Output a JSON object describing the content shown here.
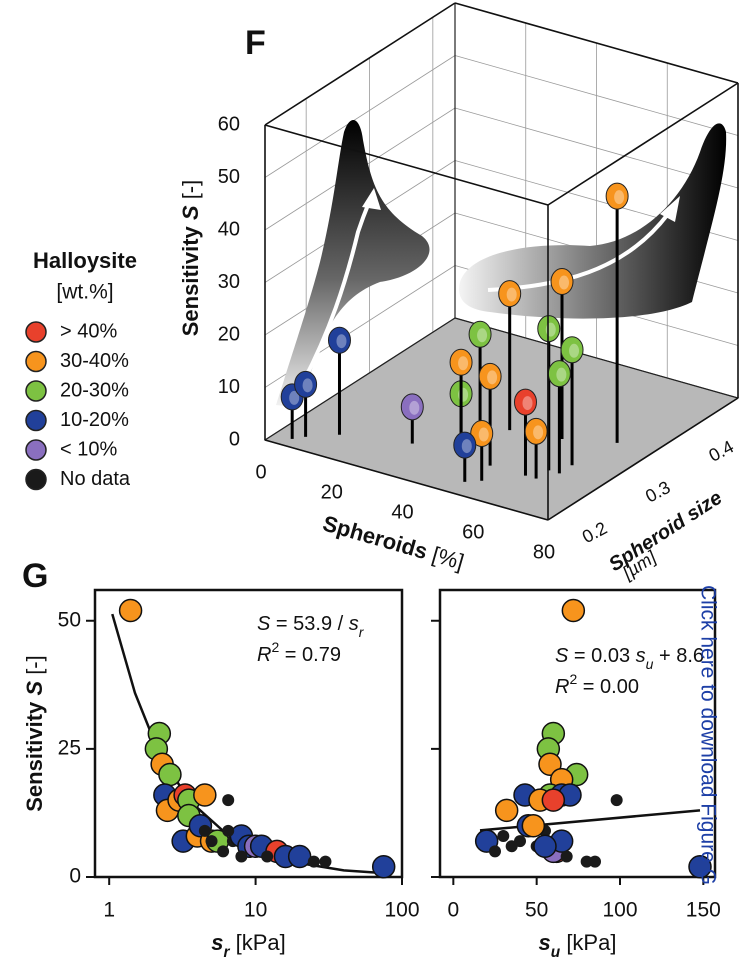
{
  "legend": {
    "title": "Halloysite",
    "subtitle": "[wt.%]",
    "items": [
      {
        "name": "> 40%",
        "color": "#e8412c"
      },
      {
        "name": "30-40%",
        "color": "#f7941d"
      },
      {
        "name": "20-30%",
        "color": "#7dc242"
      },
      {
        "name": "10-20%",
        "color": "#21409a"
      },
      {
        "name": "< 10%",
        "color": "#8a6fbf"
      },
      {
        "name": "No data",
        "color": "#1a1a1a"
      }
    ]
  },
  "link_text": "Click here to download Figure G",
  "chart_data": [
    {
      "type": "scatter3d",
      "panel": "F",
      "xlabel": [
        "Spheroids",
        " [%]"
      ],
      "ylabel": [
        "Spheroid size",
        "[µm]"
      ],
      "zlabel": [
        "Sensitivity ",
        "S",
        " [-]"
      ],
      "xlim": [
        0,
        80
      ],
      "xticks": [
        0,
        20,
        40,
        60,
        80
      ],
      "ylim": [
        0.135,
        0.435
      ],
      "yticks": [
        0.2,
        0.3,
        0.4
      ],
      "zlim": [
        0,
        60
      ],
      "zticks": [
        0,
        10,
        20,
        30,
        40,
        50,
        60
      ],
      "points": {
        "x": [
          5,
          7,
          13,
          30,
          42,
          42,
          42,
          45,
          52,
          55,
          52,
          62,
          58,
          65,
          68,
          68,
          65,
          70
        ],
        "y": [
          0.15,
          0.16,
          0.18,
          0.2,
          0.21,
          0.21,
          0.24,
          0.27,
          0.2,
          0.17,
          0.16,
          0.2,
          0.28,
          0.22,
          0.24,
          0.22,
          0.2,
          0.3
        ],
        "z": [
          8,
          10,
          18,
          7,
          11,
          17,
          20,
          26,
          17,
          9,
          7,
          14,
          30,
          27,
          22,
          19,
          9,
          47
        ],
        "group": [
          3,
          3,
          3,
          4,
          2,
          1,
          2,
          1,
          1,
          1,
          3,
          0,
          1,
          2,
          2,
          2,
          1,
          1
        ]
      }
    },
    {
      "type": "scatter",
      "panel": "G",
      "log_x": true,
      "xlabel": [
        "s",
        "r",
        " [kPa]"
      ],
      "ylabel": [
        "Sensitivity ",
        "S",
        " [-]"
      ],
      "xlim": [
        0.8,
        100
      ],
      "xticks": [
        1,
        10,
        100
      ],
      "ylim": [
        0,
        56
      ],
      "yticks": [
        0,
        25,
        50
      ],
      "annotation": [
        [
          "S",
          " = 53.9 / ",
          "s",
          "r"
        ],
        [
          "R",
          "2",
          " = 0.79"
        ]
      ],
      "fit_line": {
        "x": [
          1.05,
          1.5,
          2,
          3,
          4,
          6,
          10,
          20,
          40,
          80
        ],
        "y": [
          51.3,
          35.9,
          27,
          18,
          13.5,
          9,
          5.4,
          2.7,
          1.3,
          0.7
        ]
      },
      "points": {
        "x": [
          1.4,
          2.2,
          2.1,
          2.3,
          2.6,
          2.4,
          2.5,
          3.0,
          3.3,
          3.5,
          4.5,
          3.5,
          3.2,
          4.0,
          4.2,
          5,
          5.5,
          6.5,
          5,
          6,
          7,
          8,
          9,
          10,
          11,
          14,
          16,
          20,
          25,
          30,
          75,
          4.5,
          6.5,
          8,
          12
        ],
        "y": [
          52,
          28,
          25,
          22,
          20,
          16,
          13,
          15,
          16,
          15,
          16,
          12,
          7,
          8,
          10,
          7,
          7,
          15,
          7,
          5,
          7,
          8,
          6,
          6,
          6,
          5,
          4,
          4,
          3,
          3,
          2,
          9,
          9,
          4,
          4
        ],
        "group": [
          1,
          2,
          2,
          1,
          2,
          3,
          1,
          1,
          0,
          2,
          1,
          2,
          3,
          1,
          3,
          1,
          2,
          5,
          5,
          5,
          5,
          3,
          3,
          4,
          3,
          0,
          3,
          3,
          5,
          5,
          3,
          5,
          5,
          5,
          5
        ]
      }
    },
    {
      "type": "scatter",
      "log_x": false,
      "xlabel": [
        "s",
        "u",
        " [kPa]"
      ],
      "xlim": [
        -8,
        157
      ],
      "xticks": [
        0,
        50,
        100,
        150
      ],
      "ylim": [
        0,
        56
      ],
      "yticks": [
        0,
        25,
        50
      ],
      "annotation": [
        [
          "S",
          " = 0.03 ",
          "s",
          "u",
          " + 8.6"
        ],
        [
          "R",
          "2",
          " = 0.00"
        ]
      ],
      "fit_line": {
        "x": [
          16,
          148
        ],
        "y": [
          9.1,
          13.0
        ]
      },
      "points": {
        "x": [
          72,
          60,
          57,
          58,
          74,
          65,
          58,
          43,
          32,
          52,
          65,
          70,
          60,
          98,
          45,
          55,
          40,
          35,
          20,
          25,
          62,
          60,
          65,
          50,
          68,
          80,
          85,
          148,
          30,
          48,
          55
        ],
        "y": [
          52,
          28,
          25,
          22,
          20,
          19,
          16,
          16,
          13,
          15,
          16,
          16,
          15,
          15,
          10,
          9,
          7,
          6,
          7,
          5,
          5,
          5,
          7,
          6,
          4,
          3,
          3,
          2,
          8,
          10,
          6
        ],
        "group": [
          1,
          2,
          2,
          1,
          2,
          1,
          2,
          3,
          1,
          1,
          3,
          3,
          0,
          5,
          3,
          5,
          5,
          5,
          3,
          5,
          0,
          4,
          3,
          5,
          5,
          5,
          5,
          3,
          5,
          1,
          3
        ]
      }
    }
  ]
}
